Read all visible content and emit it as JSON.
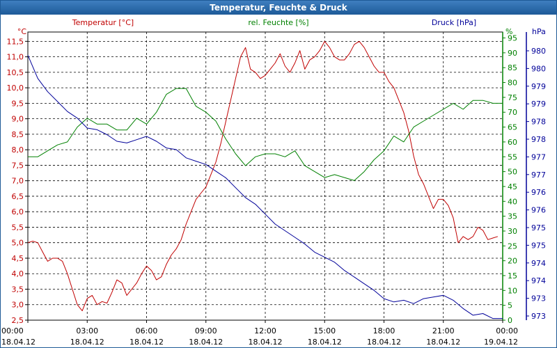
{
  "window": {
    "title": "Temperatur, Feuchte & Druck"
  },
  "chart_data": {
    "type": "line",
    "title": "Temperatur, Feuchte & Druck",
    "grid": true,
    "colors": {
      "temp": "#c00000",
      "hum": "#008000",
      "press": "#000099"
    },
    "x_ticks": [
      {
        "time": "00:00",
        "date": "18.04.12"
      },
      {
        "time": "03:00",
        "date": "18.04.12"
      },
      {
        "time": "06:00",
        "date": "18.04.12"
      },
      {
        "time": "09:00",
        "date": "18.04.12"
      },
      {
        "time": "12:00",
        "date": "18.04.12"
      },
      {
        "time": "15:00",
        "date": "18.04.12"
      },
      {
        "time": "18:00",
        "date": "18.04.12"
      },
      {
        "time": "21:00",
        "date": "18.04.12"
      },
      {
        "time": "00:00",
        "date": "19.04.12"
      }
    ],
    "xlim_hours": [
      0,
      24
    ],
    "temp_axis": {
      "label": "Temperatur [°C]",
      "unit": "°C",
      "ylim": [
        2.5,
        11.8
      ],
      "ticks": [
        "2,5",
        "3,0",
        "3,5",
        "4,0",
        "4,5",
        "5,0",
        "5,5",
        "6,0",
        "6,5",
        "7,0",
        "7,5",
        "8,0",
        "8,5",
        "9,0",
        "9,5",
        "10,0",
        "10,5",
        "11,0",
        "11,5"
      ]
    },
    "hum_axis": {
      "label": "rel. Feuchte [%]",
      "unit": "%",
      "ylim": [
        0,
        97
      ],
      "ticks": [
        "0",
        "5",
        "10",
        "15",
        "20",
        "25",
        "30",
        "35",
        "40",
        "45",
        "50",
        "55",
        "60",
        "65",
        "70",
        "75",
        "80",
        "85",
        "90",
        "95"
      ]
    },
    "press_axis": {
      "label": "Druck [hPa]",
      "unit": "hPa",
      "ylim": [
        972.6,
        981.3
      ],
      "ticks": [
        "973",
        "973",
        "974",
        "974",
        "975",
        "975",
        "976",
        "976",
        "977",
        "977",
        "978",
        "978",
        "979",
        "979",
        "980",
        "980"
      ]
    },
    "series": [
      {
        "name": "Temperatur [°C]",
        "axis": "temp",
        "x": [
          0,
          0.25,
          0.5,
          0.75,
          1,
          1.25,
          1.5,
          1.75,
          2,
          2.25,
          2.5,
          2.75,
          3,
          3.25,
          3.5,
          3.75,
          4,
          4.25,
          4.5,
          4.75,
          5,
          5.25,
          5.5,
          5.75,
          6,
          6.25,
          6.5,
          6.75,
          7,
          7.25,
          7.5,
          7.75,
          8,
          8.25,
          8.5,
          8.75,
          9,
          9.25,
          9.5,
          9.75,
          10,
          10.25,
          10.5,
          10.75,
          11,
          11.25,
          11.5,
          11.75,
          12,
          12.25,
          12.5,
          12.75,
          13,
          13.25,
          13.5,
          13.75,
          14,
          14.25,
          14.5,
          14.75,
          15,
          15.25,
          15.5,
          15.75,
          16,
          16.25,
          16.5,
          16.75,
          17,
          17.25,
          17.5,
          17.75,
          18,
          18.25,
          18.5,
          18.75,
          19,
          19.25,
          19.5,
          19.75,
          20,
          20.25,
          20.5,
          20.75,
          21,
          21.25,
          21.5,
          21.75,
          22,
          22.25,
          22.5,
          22.75,
          23,
          23.25,
          23.5,
          23.75
        ],
        "values": [
          5.0,
          5.05,
          5.0,
          4.7,
          4.4,
          4.5,
          4.5,
          4.4,
          4.0,
          3.5,
          3.0,
          2.8,
          3.2,
          3.3,
          3.0,
          3.1,
          3.05,
          3.4,
          3.8,
          3.7,
          3.3,
          3.5,
          3.7,
          4.0,
          4.25,
          4.1,
          3.8,
          3.9,
          4.3,
          4.6,
          4.8,
          5.1,
          5.6,
          6.0,
          6.4,
          6.6,
          6.8,
          7.2,
          7.6,
          8.2,
          8.9,
          9.6,
          10.3,
          11.0,
          11.3,
          10.6,
          10.5,
          10.3,
          10.4,
          10.6,
          10.8,
          11.1,
          10.7,
          10.5,
          10.8,
          11.2,
          10.6,
          10.9,
          11.0,
          11.2,
          11.5,
          11.3,
          11.0,
          10.9,
          10.9,
          11.1,
          11.4,
          11.5,
          11.3,
          11.0,
          10.7,
          10.5,
          10.5,
          10.2,
          10.0,
          9.6,
          9.2,
          8.6,
          7.8,
          7.2,
          6.9,
          6.5,
          6.1,
          6.4,
          6.4,
          6.2,
          5.8,
          5.0,
          5.2,
          5.1,
          5.2,
          5.5,
          5.4,
          5.1,
          5.15,
          5.2
        ],
        "color": "#c00000"
      },
      {
        "name": "rel. Feuchte [%]",
        "axis": "hum",
        "x": [
          0,
          0.5,
          1,
          1.5,
          2,
          2.5,
          3,
          3.5,
          4,
          4.5,
          5,
          5.5,
          6,
          6.5,
          7,
          7.5,
          8,
          8.5,
          9,
          9.5,
          10,
          10.5,
          11,
          11.5,
          12,
          12.5,
          13,
          13.5,
          14,
          14.5,
          15,
          15.5,
          16,
          16.5,
          17,
          17.5,
          18,
          18.5,
          19,
          19.5,
          20,
          20.5,
          21,
          21.5,
          22,
          22.5,
          23,
          23.5,
          24
        ],
        "values": [
          55,
          55,
          57,
          59,
          60,
          65,
          68,
          66,
          66,
          64,
          64,
          68,
          66,
          70,
          76,
          78,
          78,
          72,
          70,
          67,
          61,
          56,
          52,
          55,
          56,
          56,
          55,
          57,
          52,
          50,
          48,
          49,
          48,
          47,
          50,
          54,
          57,
          62,
          60,
          65,
          67,
          69,
          71,
          73,
          71,
          74,
          74,
          73,
          73
        ],
        "color": "#008000"
      },
      {
        "name": "Druck [hPa]",
        "axis": "press",
        "x": [
          0,
          0.5,
          1,
          1.5,
          2,
          2.5,
          3,
          3.5,
          4,
          4.5,
          5,
          5.5,
          6,
          6.5,
          7,
          7.5,
          8,
          8.5,
          9,
          9.5,
          10,
          10.5,
          11,
          11.5,
          12,
          12.5,
          13,
          13.5,
          14,
          14.5,
          15,
          15.5,
          16,
          16.5,
          17,
          17.5,
          18,
          18.5,
          19,
          19.5,
          20,
          20.5,
          21,
          21.5,
          22,
          22.5,
          23,
          23.5,
          24
        ],
        "values": [
          980.6,
          979.9,
          979.5,
          979.2,
          978.9,
          978.7,
          978.4,
          978.35,
          978.2,
          978.0,
          977.95,
          978.05,
          978.15,
          978.0,
          977.8,
          977.75,
          977.5,
          977.4,
          977.3,
          977.1,
          976.9,
          976.6,
          976.3,
          976.1,
          975.8,
          975.5,
          975.3,
          975.1,
          974.9,
          974.65,
          974.5,
          974.35,
          974.1,
          973.9,
          973.7,
          973.5,
          973.25,
          973.15,
          973.2,
          973.1,
          973.25,
          973.3,
          973.35,
          973.2,
          972.95,
          972.75,
          972.8,
          972.65,
          972.65
        ],
        "color": "#000099"
      }
    ]
  }
}
